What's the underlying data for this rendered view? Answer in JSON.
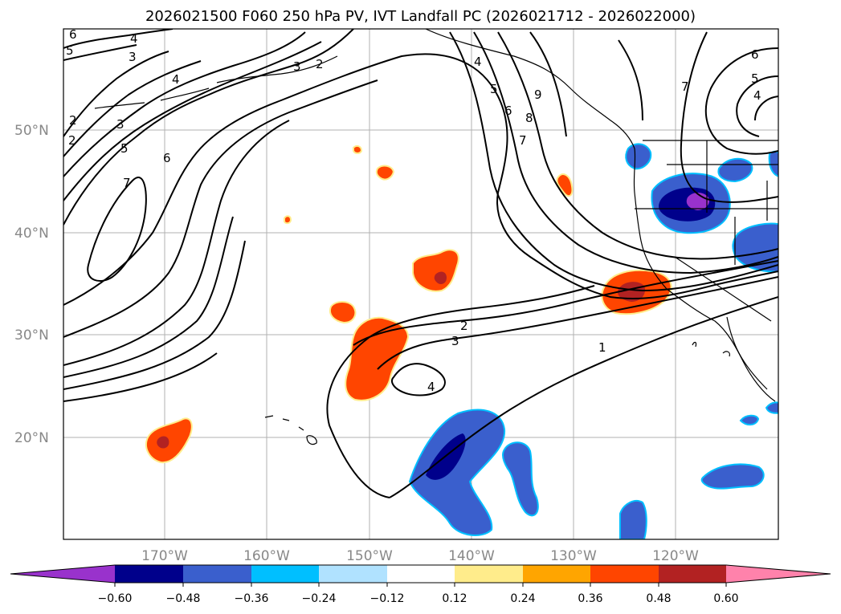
{
  "title": "2026021500 F060 250 hPa PV, IVT Landfall PC (2026021712 - 2026022000)",
  "latitude_labels": [
    "50°N",
    "40°N",
    "30°N",
    "20°N"
  ],
  "longitude_labels": [
    "170°W",
    "160°W",
    "150°W",
    "140°W",
    "130°W",
    "120°W"
  ],
  "pv_contour_labels": [
    "6",
    "4",
    "5",
    "3",
    "2",
    "3",
    "2",
    "4",
    "5",
    "6",
    "7",
    "8",
    "9",
    "7",
    "6",
    "5",
    "4",
    "3",
    "2",
    "5",
    "7",
    "6",
    "4",
    "2",
    "3",
    "4",
    "1"
  ],
  "colorbar": {
    "tick_labels": [
      "−0.60",
      "−0.48",
      "−0.36",
      "−0.24",
      "−0.12",
      "0.12",
      "0.24",
      "0.36",
      "0.48",
      "0.60"
    ],
    "colors": {
      "under": "#9932cc",
      "neg060": "#00008b",
      "neg048": "#3a5fcd",
      "neg036": "#00bfff",
      "neg024": "#b0e2ff",
      "zero": "#ffffff",
      "pos012": "#ffec8b",
      "pos024": "#ffa500",
      "pos036": "#ff4500",
      "pos048": "#b22222",
      "over": "#ff82ab"
    }
  }
}
